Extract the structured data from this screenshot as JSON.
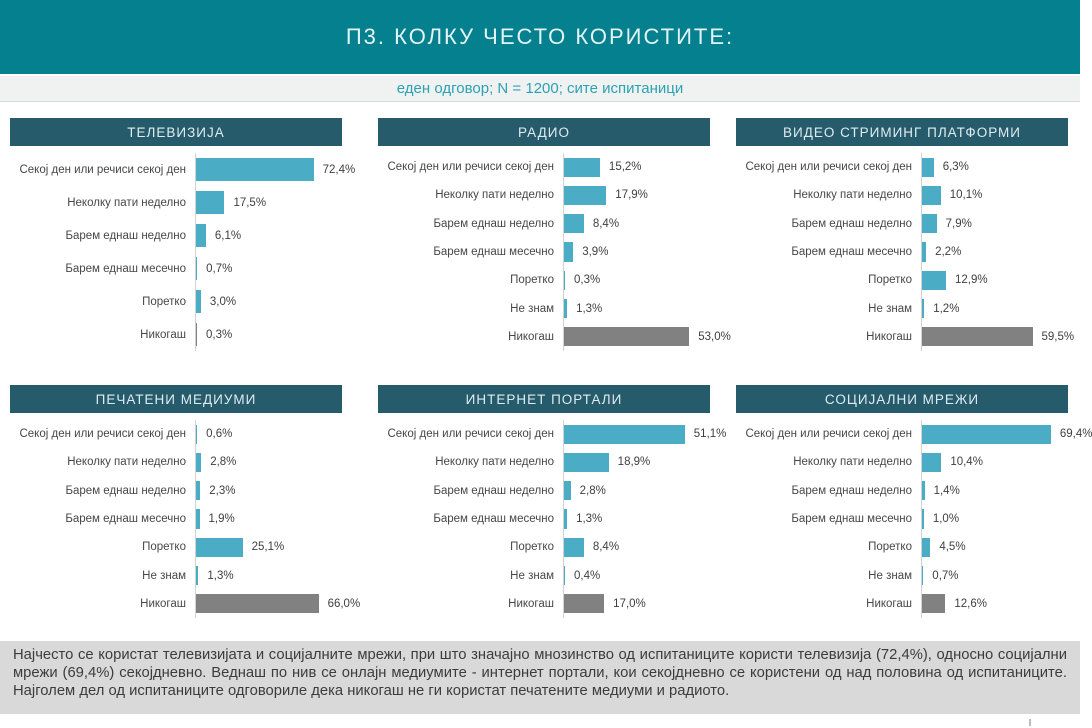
{
  "header": {
    "title": "П3. КОЛКУ ЧЕСТО КОРИСТИТЕ:"
  },
  "subtitle": {
    "text": "еден одговор; N = 1200; сите испитаници"
  },
  "colors": {
    "banner_bg": "#04808e",
    "subtitle_text": "#2ba3b3",
    "panel_title_bg": "#265b6c",
    "bar_teal": "#4aacc5",
    "bar_gray": "#818181",
    "footer_bg": "#d9d9d9"
  },
  "chart_data": [
    {
      "type": "bar",
      "title": "ТЕЛЕВИЗИЈА",
      "orientation": "horizontal",
      "categories": [
        "Секој ден или речиси секој ден",
        "Неколку пати неделно",
        "Барем еднаш неделно",
        "Барем еднаш месечно",
        "Поретко",
        "Никогаш"
      ],
      "values": [
        72.4,
        17.5,
        6.1,
        0.7,
        3.0,
        0.3
      ],
      "value_labels": [
        "72,4%",
        "17,5%",
        "6,1%",
        "0,7%",
        "3,0%",
        "0,3%"
      ],
      "bar_colors": [
        "#4aacc5",
        "#4aacc5",
        "#4aacc5",
        "#4aacc5",
        "#4aacc5",
        "#818181"
      ],
      "xlim": [
        0,
        80
      ],
      "grid": false,
      "legend": false
    },
    {
      "type": "bar",
      "title": "РАДИО",
      "orientation": "horizontal",
      "categories": [
        "Секој ден или речиси секој ден",
        "Неколку пати неделно",
        "Барем еднаш неделно",
        "Барем еднаш месечно",
        "Поретко",
        "Не знам",
        "Никогаш"
      ],
      "values": [
        15.2,
        17.9,
        8.4,
        3.9,
        0.3,
        1.3,
        53.0
      ],
      "value_labels": [
        "15,2%",
        "17,9%",
        "8,4%",
        "3,9%",
        "0,3%",
        "1,3%",
        "53,0%"
      ],
      "bar_colors": [
        "#4aacc5",
        "#4aacc5",
        "#4aacc5",
        "#4aacc5",
        "#4aacc5",
        "#4aacc5",
        "#818181"
      ],
      "xlim": [
        0,
        55
      ],
      "grid": false,
      "legend": false
    },
    {
      "type": "bar",
      "title": "ВИДЕО СТРИМИНГ ПЛАТФОРМИ",
      "orientation": "horizontal",
      "categories": [
        "Секој ден или речиси секој ден",
        "Неколку пати неделно",
        "Барем еднаш неделно",
        "Барем еднаш месечно",
        "Поретко",
        "Не знам",
        "Никогаш"
      ],
      "values": [
        6.3,
        10.1,
        7.9,
        2.2,
        12.9,
        1.2,
        59.5
      ],
      "value_labels": [
        "6,3%",
        "10,1%",
        "7,9%",
        "2,2%",
        "12,9%",
        "1,2%",
        "59,5%"
      ],
      "bar_colors": [
        "#4aacc5",
        "#4aacc5",
        "#4aacc5",
        "#4aacc5",
        "#4aacc5",
        "#4aacc5",
        "#818181"
      ],
      "xlim": [
        0,
        70
      ],
      "grid": false,
      "legend": false
    },
    {
      "type": "bar",
      "title": "ПЕЧАТЕНИ МЕДИУМИ",
      "orientation": "horizontal",
      "categories": [
        "Секој ден или речиси секој ден",
        "Неколку пати неделно",
        "Барем еднаш неделно",
        "Барем еднаш месечно",
        "Поретко",
        "Не знам",
        "Никогаш"
      ],
      "values": [
        0.6,
        2.8,
        2.3,
        1.9,
        25.1,
        1.3,
        66.0
      ],
      "value_labels": [
        "0,6%",
        "2,8%",
        "2,3%",
        "1,9%",
        "25,1%",
        "1,3%",
        "66,0%"
      ],
      "bar_colors": [
        "#4aacc5",
        "#4aacc5",
        "#4aacc5",
        "#4aacc5",
        "#4aacc5",
        "#4aacc5",
        "#818181"
      ],
      "xlim": [
        0,
        70
      ],
      "grid": false,
      "legend": false
    },
    {
      "type": "bar",
      "title": "ИНТЕРНЕТ ПОРТАЛИ",
      "orientation": "horizontal",
      "categories": [
        "Секој ден или речиси секој ден",
        "Неколку пати неделно",
        "Барем еднаш неделно",
        "Барем еднаш месечно",
        "Поретко",
        "Не знам",
        "Никогаш"
      ],
      "values": [
        51.1,
        18.9,
        2.8,
        1.3,
        8.4,
        0.4,
        17.0
      ],
      "value_labels": [
        "51,1%",
        "18,9%",
        "2,8%",
        "1,3%",
        "8,4%",
        "0,4%",
        "17,0%"
      ],
      "bar_colors": [
        "#4aacc5",
        "#4aacc5",
        "#4aacc5",
        "#4aacc5",
        "#4aacc5",
        "#4aacc5",
        "#818181"
      ],
      "xlim": [
        0,
        55
      ],
      "grid": false,
      "legend": false
    },
    {
      "type": "bar",
      "title": "СОЦИЈАЛНИ МРЕЖИ",
      "orientation": "horizontal",
      "categories": [
        "Секој ден или речиси секој ден",
        "Неколку пати неделно",
        "Барем еднаш неделно",
        "Барем еднаш месечно",
        "Поретко",
        "Не знам",
        "Никогаш"
      ],
      "values": [
        69.4,
        10.4,
        1.4,
        1.0,
        4.5,
        0.7,
        12.6
      ],
      "value_labels": [
        "69,4%",
        "10,4%",
        "1,4%",
        "1,0%",
        "4,5%",
        "0,7%",
        "12,6%"
      ],
      "bar_colors": [
        "#4aacc5",
        "#4aacc5",
        "#4aacc5",
        "#4aacc5",
        "#4aacc5",
        "#4aacc5",
        "#818181"
      ],
      "xlim": [
        0,
        70
      ],
      "grid": false,
      "legend": false
    }
  ],
  "footer": {
    "text": "Најчесто се користат телевизијата и социјалните мрежи, при што значајно мнозинство од испитаниците користи телевизија (72,4%), односно социјални мрежи (69,4%) секојдневно. Веднаш по нив се онлајн медиумите - интернет портали, кои секојдневно се користени од над половина од испитаниците. Најголем дел од испитаниците одговориле дека никогаш не ги користат печатените медиуми и радиото."
  }
}
